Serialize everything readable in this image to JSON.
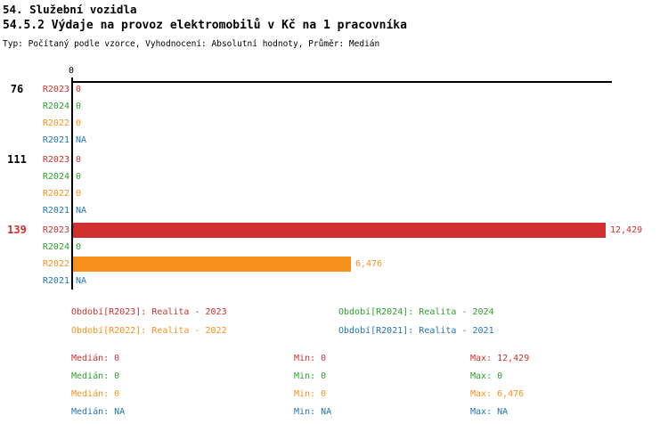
{
  "header": {
    "title": "54. Služební vozidla",
    "subtitle": "54.5.2 Výdaje na provoz elektromobilů v Kč na 1 pracovníka",
    "meta": "Typ: Počítaný podle vzorce, Vyhodnocení: Absolutní hodnoty, Průměr: Medián"
  },
  "chart_data": {
    "type": "bar",
    "orientation": "horizontal",
    "title": "54.5.2 Výdaje na provoz elektromobilů v Kč na 1 pracovníka",
    "x_axis": {
      "tick_labels": [
        "0"
      ],
      "min": 0,
      "max": 12429
    },
    "categories": [
      "76",
      "111",
      "139"
    ],
    "series_order": [
      "R2023",
      "R2024",
      "R2022",
      "R2021"
    ],
    "colors": {
      "R2023": "#d03030",
      "R2024": "#2da02c",
      "R2022": "#f8911c",
      "R2021": "#2274b5"
    },
    "groups": [
      {
        "label": "76",
        "label_color": "#000000",
        "rows": [
          {
            "series": "R2023",
            "value": 0,
            "display": "0"
          },
          {
            "series": "R2024",
            "value": 0,
            "display": "0"
          },
          {
            "series": "R2022",
            "value": 0,
            "display": "0"
          },
          {
            "series": "R2021",
            "value": null,
            "display": "NA"
          }
        ]
      },
      {
        "label": "111",
        "label_color": "#000000",
        "rows": [
          {
            "series": "R2023",
            "value": 0,
            "display": "0"
          },
          {
            "series": "R2024",
            "value": 0,
            "display": "0"
          },
          {
            "series": "R2022",
            "value": 0,
            "display": "0"
          },
          {
            "series": "R2021",
            "value": null,
            "display": "NA"
          }
        ]
      },
      {
        "label": "139",
        "label_color": "#d03030",
        "rows": [
          {
            "series": "R2023",
            "value": 12429,
            "display": "12,429"
          },
          {
            "series": "R2024",
            "value": 0,
            "display": "0"
          },
          {
            "series": "R2022",
            "value": 6476,
            "display": "6,476"
          },
          {
            "series": "R2021",
            "value": null,
            "display": "NA"
          }
        ]
      }
    ],
    "legend": [
      {
        "series": "R2023",
        "text": "Období[R2023]: Realita - 2023"
      },
      {
        "series": "R2024",
        "text": "Období[R2024]: Realita - 2024"
      },
      {
        "series": "R2022",
        "text": "Období[R2022]: Realita - 2022"
      },
      {
        "series": "R2021",
        "text": "Období[R2021]: Realita - 2021"
      }
    ],
    "stats": [
      {
        "series": "R2023",
        "median": "Medián: 0",
        "min": "Min: 0",
        "max": "Max: 12,429"
      },
      {
        "series": "R2024",
        "median": "Medián: 0",
        "min": "Min: 0",
        "max": "Max: 0"
      },
      {
        "series": "R2022",
        "median": "Medián: 0",
        "min": "Min: 0",
        "max": "Max: 6,476"
      },
      {
        "series": "R2021",
        "median": "Medián: NA",
        "min": "Min: NA",
        "max": "Max: NA"
      }
    ]
  }
}
